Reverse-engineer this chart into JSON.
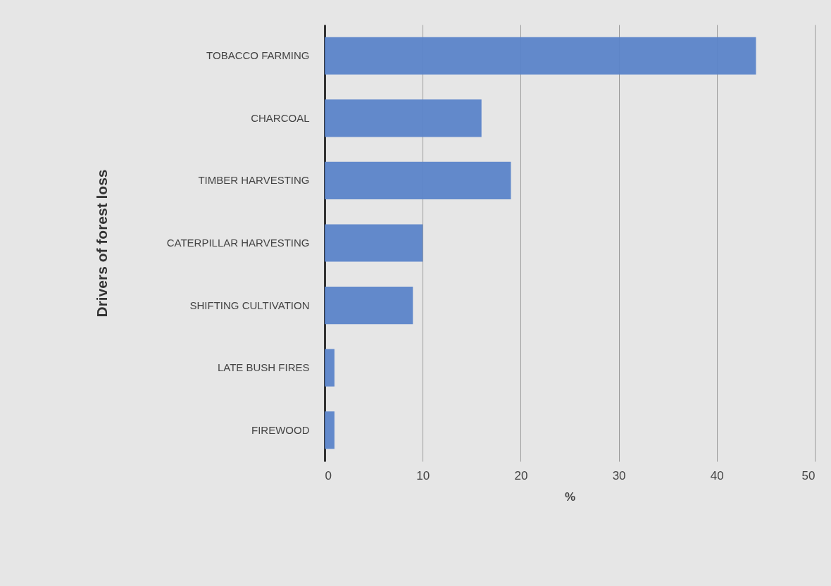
{
  "chart_data": {
    "type": "bar",
    "orientation": "horizontal",
    "xlabel": "%",
    "ylabel": "Drivers of forest loss",
    "categories": [
      "TOBACCO FARMING",
      "CHARCOAL",
      "TIMBER HARVESTING",
      "CATERPILLAR HARVESTING",
      "SHIFTING CULTIVATION",
      "LATE BUSH FIRES",
      "FIREWOOD"
    ],
    "values": [
      44,
      16,
      19,
      10,
      9,
      1,
      1
    ],
    "color": "#5b84c9",
    "xlim": [
      0,
      50
    ],
    "xticks": [
      0,
      10,
      20,
      30,
      40,
      50
    ],
    "grid": "x"
  }
}
